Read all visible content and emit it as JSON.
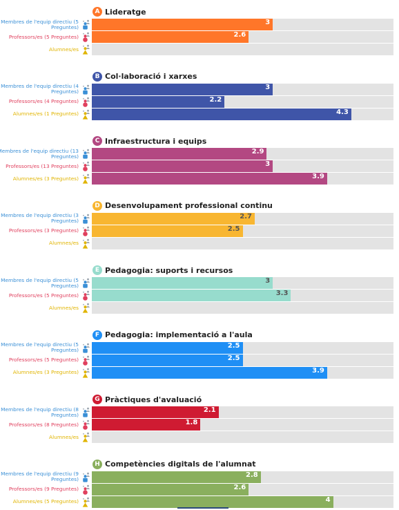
{
  "chart_data": {
    "type": "bar",
    "orientation": "horizontal",
    "xlim": [
      0,
      5
    ],
    "role_colors": {
      "Membres de l'equip directiu": "#3a8fd6",
      "Professors/es": "#e0405e",
      "Alumnes/es": "#e0b400"
    },
    "sections": [
      {
        "letter": "A",
        "title": "Lideratge",
        "color": "#ff7629",
        "value_text_color": "#ffffff",
        "rows": [
          {
            "role": "staff",
            "label": "Membres de l'equip directiu (5 Preguntes)",
            "value": 3,
            "value_label": "3"
          },
          {
            "role": "teacher",
            "label": "Professors/es (5 Preguntes)",
            "value": 2.6,
            "value_label": "2.6"
          },
          {
            "role": "student",
            "label": "Alumnes/es",
            "value": null,
            "value_label": ""
          }
        ]
      },
      {
        "letter": "B",
        "title": "Col·laboració i xarxes",
        "color": "#3f55a8",
        "value_text_color": "#ffffff",
        "rows": [
          {
            "role": "staff",
            "label": "Membres de l'equip directiu (4 Preguntes)",
            "value": 3,
            "value_label": "3"
          },
          {
            "role": "teacher",
            "label": "Professors/es (4 Preguntes)",
            "value": 2.2,
            "value_label": "2.2"
          },
          {
            "role": "student",
            "label": "Alumnes/es (1 Preguntes)",
            "value": 4.3,
            "value_label": "4.3"
          }
        ]
      },
      {
        "letter": "C",
        "title": "Infraestructura i equips",
        "color": "#b34882",
        "value_text_color": "#ffffff",
        "rows": [
          {
            "role": "staff",
            "label": "Membres de l'equip directiu (13 Preguntes)",
            "value": 2.9,
            "value_label": "2.9"
          },
          {
            "role": "teacher",
            "label": "Professors/es (13 Preguntes)",
            "value": 3,
            "value_label": "3"
          },
          {
            "role": "student",
            "label": "Alumnes/es (3 Preguntes)",
            "value": 3.9,
            "value_label": "3.9"
          }
        ]
      },
      {
        "letter": "D",
        "title": "Desenvolupament professional continu",
        "color": "#f8b631",
        "value_text_color": "#555555",
        "rows": [
          {
            "role": "staff",
            "label": "Membres de l'equip directiu (3 Preguntes)",
            "value": 2.7,
            "value_label": "2.7"
          },
          {
            "role": "teacher",
            "label": "Professors/es (3 Preguntes)",
            "value": 2.5,
            "value_label": "2.5"
          },
          {
            "role": "student",
            "label": "Alumnes/es",
            "value": null,
            "value_label": ""
          }
        ]
      },
      {
        "letter": "E",
        "title": "Pedagogia: suports i recursos",
        "color": "#97dccd",
        "value_text_color": "#555555",
        "rows": [
          {
            "role": "staff",
            "label": "Membres de l'equip directiu (5 Preguntes)",
            "value": 3,
            "value_label": "3"
          },
          {
            "role": "teacher",
            "label": "Professors/es (5 Preguntes)",
            "value": 3.3,
            "value_label": "3.3"
          },
          {
            "role": "student",
            "label": "Alumnes/es",
            "value": null,
            "value_label": ""
          }
        ]
      },
      {
        "letter": "F",
        "title": "Pedagogia: implementació a l'aula",
        "color": "#1f8ff5",
        "value_text_color": "#ffffff",
        "rows": [
          {
            "role": "staff",
            "label": "Membres de l'equip directiu (5 Preguntes)",
            "value": 2.5,
            "value_label": "2.5"
          },
          {
            "role": "teacher",
            "label": "Professors/es (5 Preguntes)",
            "value": 2.5,
            "value_label": "2.5"
          },
          {
            "role": "student",
            "label": "Alumnes/es (3 Preguntes)",
            "value": 3.9,
            "value_label": "3.9"
          }
        ]
      },
      {
        "letter": "G",
        "title": "Pràctiques d'avaluació",
        "color": "#cf1b32",
        "value_text_color": "#ffffff",
        "rows": [
          {
            "role": "staff",
            "label": "Membres de l'equip directiu (8 Preguntes)",
            "value": 2.1,
            "value_label": "2.1"
          },
          {
            "role": "teacher",
            "label": "Professors/es (8 Preguntes)",
            "value": 1.8,
            "value_label": "1.8"
          },
          {
            "role": "student",
            "label": "Alumnes/es",
            "value": null,
            "value_label": ""
          }
        ]
      },
      {
        "letter": "H",
        "title": "Competències digitals de l'alumnat",
        "color": "#8aaf5e",
        "value_text_color": "#ffffff",
        "rows": [
          {
            "role": "staff",
            "label": "Membres de l'equip directiu (9 Preguntes)",
            "value": 2.8,
            "value_label": "2.8"
          },
          {
            "role": "teacher",
            "label": "Professors/es (9 Preguntes)",
            "value": 2.6,
            "value_label": "2.6"
          },
          {
            "role": "student",
            "label": "Alumnes/es (5 Preguntes)",
            "value": 4,
            "value_label": "4"
          }
        ]
      }
    ]
  }
}
